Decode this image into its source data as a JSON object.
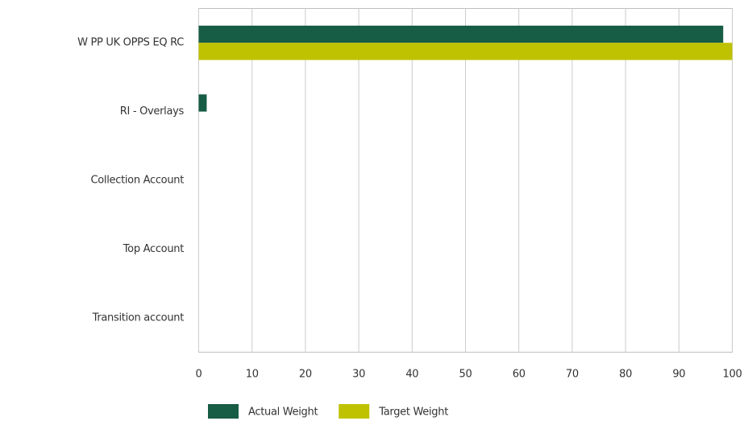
{
  "chart_data": {
    "type": "bar",
    "orientation": "horizontal",
    "categories": [
      "W PP UK OPPS EQ RC",
      "RI - Overlays",
      "Collection Account",
      "Top Account",
      "Transition account"
    ],
    "series": [
      {
        "name": "Actual Weight",
        "color": "#175c45",
        "values": [
          98.3,
          1.5,
          0,
          0,
          0
        ]
      },
      {
        "name": "Target Weight",
        "color": "#bfc200",
        "values": [
          100,
          0,
          0,
          0,
          0
        ]
      }
    ],
    "xlim": [
      0,
      100
    ],
    "xticks": [
      0,
      10,
      20,
      30,
      40,
      50,
      60,
      70,
      80,
      90,
      100
    ],
    "grid": true,
    "legend": "bottom"
  }
}
